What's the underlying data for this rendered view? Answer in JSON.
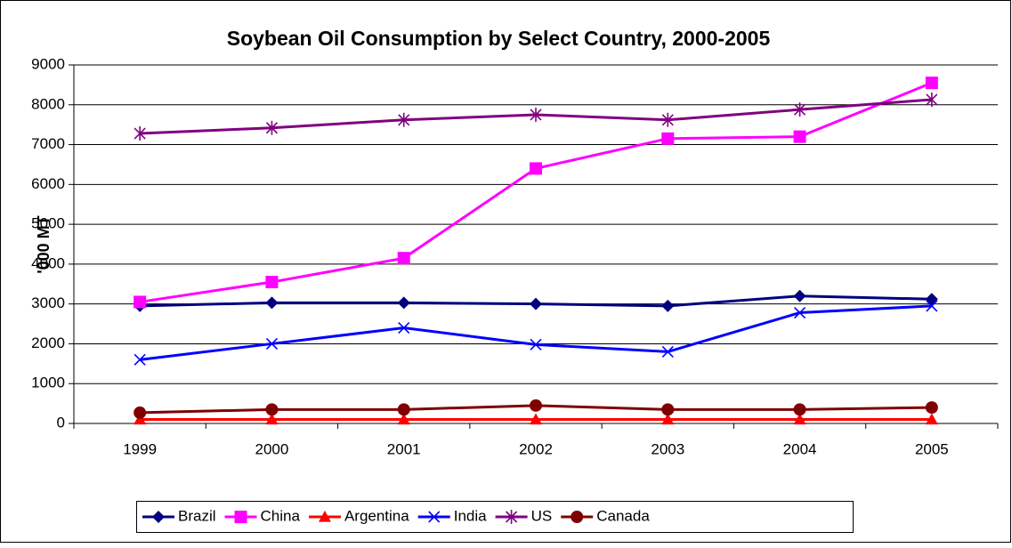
{
  "chart_data": {
    "type": "line",
    "title": "Soybean Oil Consumption by Select Country, 2000-2005",
    "y_label": "'000 MT",
    "categories": [
      "1999",
      "2000",
      "2001",
      "2002",
      "2003",
      "2004",
      "2005"
    ],
    "ylim": [
      0,
      9000
    ],
    "yticks": [
      0,
      1000,
      2000,
      3000,
      4000,
      5000,
      6000,
      7000,
      8000,
      9000
    ],
    "grid": true,
    "legend": "bottom",
    "series": [
      {
        "name": "Brazil",
        "color": "#000080",
        "marker": "diamond",
        "values": [
          2950,
          3030,
          3030,
          3000,
          2950,
          3200,
          3120
        ]
      },
      {
        "name": "China",
        "color": "#ff00ff",
        "marker": "square",
        "values": [
          3050,
          3550,
          4150,
          6400,
          7150,
          7200,
          8550
        ]
      },
      {
        "name": "Argentina",
        "color": "#ff0000",
        "marker": "triangle",
        "values": [
          100,
          100,
          100,
          100,
          100,
          100,
          100
        ]
      },
      {
        "name": "India",
        "color": "#0000ff",
        "marker": "x",
        "values": [
          1600,
          2000,
          2400,
          1980,
          1800,
          2780,
          2950
        ]
      },
      {
        "name": "US",
        "color": "#800080",
        "marker": "asterisk",
        "values": [
          7280,
          7420,
          7620,
          7750,
          7620,
          7880,
          8130
        ]
      },
      {
        "name": "Canada",
        "color": "#800000",
        "marker": "circle",
        "values": [
          270,
          350,
          350,
          450,
          350,
          350,
          400
        ]
      }
    ]
  }
}
